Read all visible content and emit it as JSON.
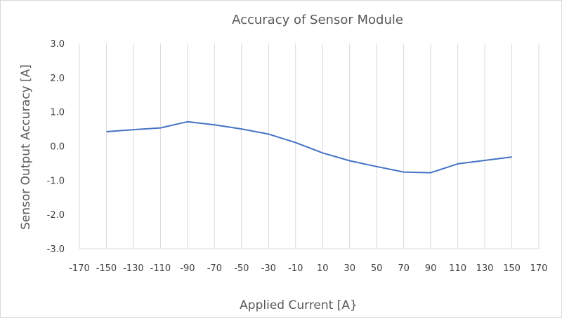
{
  "chart_data": {
    "type": "line",
    "title": "Accuracy of Sensor Module",
    "xlabel": "Applied Current [A}",
    "ylabel": "Sensor Output Accuracy [A]",
    "xlim": [
      -170,
      170
    ],
    "ylim": [
      -3.0,
      3.0
    ],
    "x_ticks": [
      -170,
      -150,
      -130,
      -110,
      -90,
      -70,
      -50,
      -30,
      -10,
      10,
      30,
      50,
      70,
      90,
      110,
      130,
      150,
      170
    ],
    "x_tick_labels": [
      "-170",
      "-150",
      "-130",
      "-110",
      "-90",
      "-70",
      "-50",
      "-30",
      "-10",
      "10",
      "30",
      "50",
      "70",
      "90",
      "110",
      "130",
      "150",
      "170"
    ],
    "y_ticks": [
      3.0,
      2.0,
      1.0,
      0.0,
      -1.0,
      -2.0,
      -3.0
    ],
    "y_tick_labels": [
      "3.0",
      "2.0",
      "1.0",
      "0.0",
      "-1.0",
      "-2.0",
      "-3.0"
    ],
    "grid": "vertical",
    "series": [
      {
        "color": "#4472c4",
        "x": [
          -150,
          -130,
          -110,
          -90,
          -70,
          -50,
          -30,
          -10,
          10,
          30,
          50,
          70,
          90,
          110,
          130,
          150
        ],
        "y": [
          0.42,
          0.48,
          0.53,
          0.71,
          0.62,
          0.5,
          0.35,
          0.1,
          -0.2,
          -0.43,
          -0.6,
          -0.76,
          -0.78,
          -0.52,
          -0.42,
          -0.32
        ]
      }
    ]
  }
}
